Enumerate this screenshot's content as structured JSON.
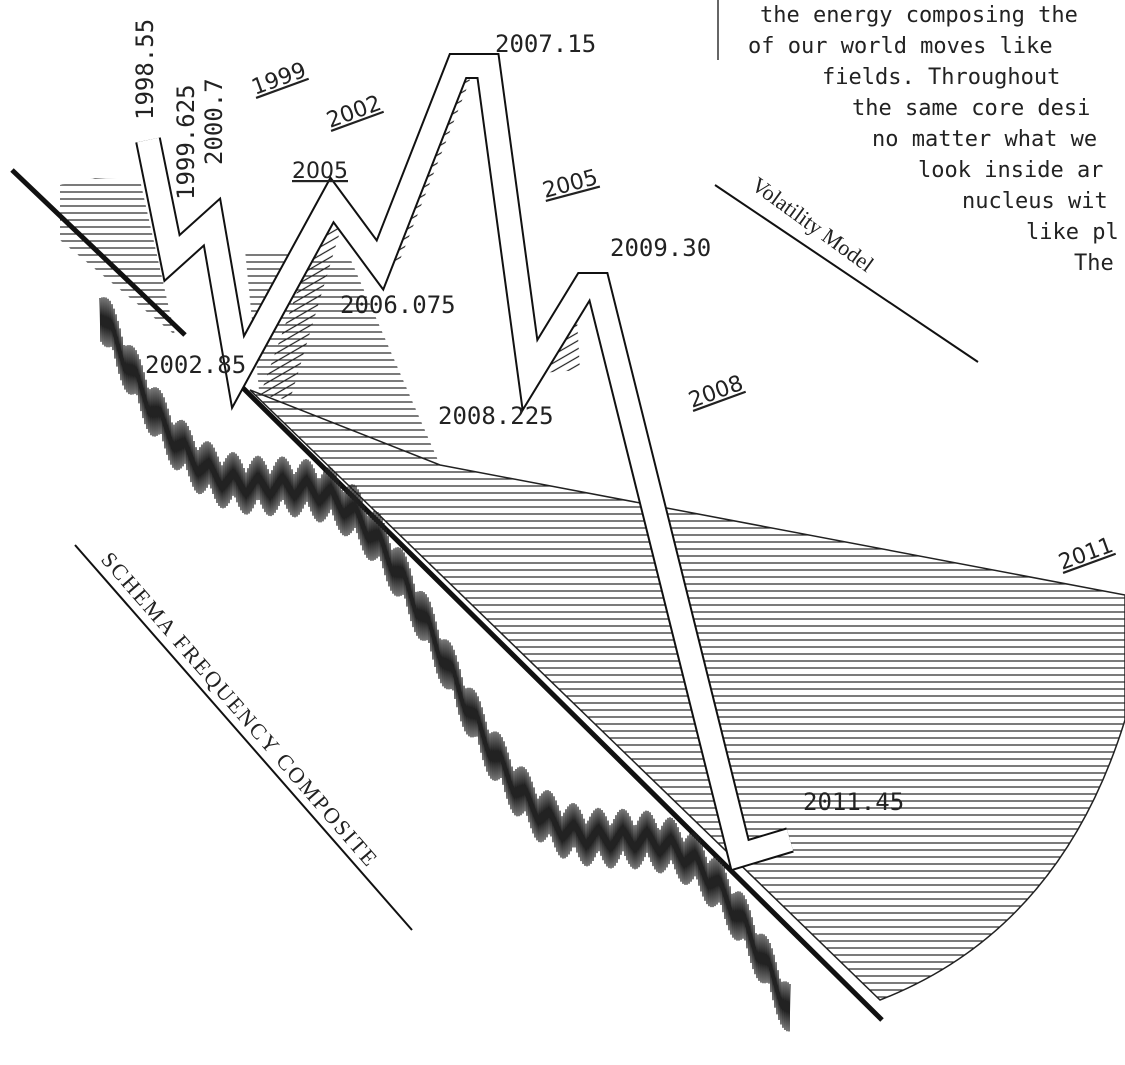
{
  "paragraph": {
    "lines": [
      "the energy composing the",
      "of our world moves like",
      "fields. Throughout",
      "the same core desi",
      "no matter what we",
      "look inside ar",
      "nucleus wit",
      "like pl",
      "The"
    ]
  },
  "labels": {
    "l1998_55": "1998.55",
    "l1999_625": "1999.625",
    "l2000_7": "2000.7",
    "l1999": "1999",
    "l2002": "2002",
    "l2005a": "2005",
    "l2005b": "2005",
    "l2007_15": "2007.15",
    "l2009_30": "2009.30",
    "l2006_075": "2006.075",
    "l2002_85": "2002.85",
    "l2008_225": "2008.225",
    "l2008": "2008",
    "l2011": "2011",
    "l2011_45": "2011.45"
  },
  "titles": {
    "volatility": "Volatility Model",
    "schema": "SCHEMA FREQUENCY COMPOSITE"
  }
}
